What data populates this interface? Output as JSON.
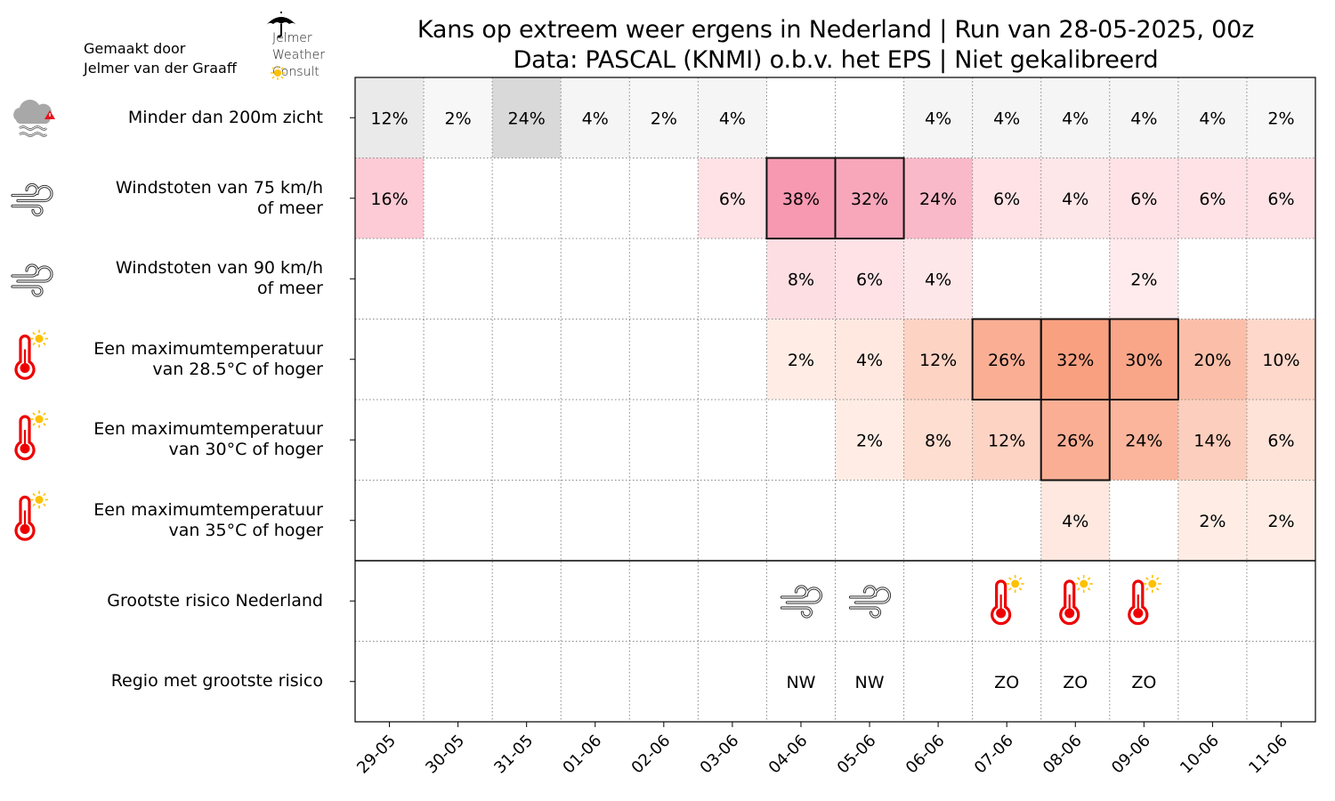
{
  "header": {
    "title_line1": "Kans op extreem weer ergens in Nederland | Run van 28-05-2025, 00z",
    "title_line2": "Data: PASCAL (KNMI) o.b.v. het EPS | Niet gekalibreerd",
    "credit_line1": "Gemaakt door",
    "credit_line2": "Jelmer van der Graaff",
    "logo_line1": "Jelmer",
    "logo_line2": "Weather",
    "logo_line3": "Consult"
  },
  "chart_data": {
    "type": "heatmap",
    "title": "Kans op extreem weer ergens in Nederland | Run van 28-05-2025, 00z",
    "subtitle": "Data: PASCAL (KNMI) o.b.v. het EPS | Niet gekalibreerd",
    "unit": "%",
    "x": [
      "29-05",
      "30-05",
      "31-05",
      "01-06",
      "02-06",
      "03-06",
      "04-06",
      "05-06",
      "06-06",
      "07-06",
      "08-06",
      "09-06",
      "10-06",
      "11-06"
    ],
    "grid": "dotted",
    "highlight_threshold_note": "cells with bold outline",
    "rows": [
      {
        "label_line1": "Minder dan 200m zicht",
        "label_line2": "",
        "icon": "fog-warning-icon",
        "colormap": "grey",
        "values": [
          12,
          2,
          24,
          4,
          2,
          4,
          null,
          null,
          4,
          4,
          4,
          4,
          4,
          2
        ],
        "highlighted": [
          false,
          false,
          false,
          false,
          false,
          false,
          false,
          false,
          false,
          false,
          false,
          false,
          false,
          false
        ]
      },
      {
        "label_line1": "Windstoten van 75 km/h",
        "label_line2": "of meer",
        "icon": "wind-icon",
        "colormap": "pink",
        "values": [
          16,
          null,
          null,
          null,
          null,
          6,
          38,
          32,
          24,
          6,
          4,
          6,
          6,
          6
        ],
        "highlighted": [
          false,
          false,
          false,
          false,
          false,
          false,
          true,
          true,
          false,
          false,
          false,
          false,
          false,
          false
        ]
      },
      {
        "label_line1": "Windstoten van 90 km/h",
        "label_line2": "of meer",
        "icon": "wind-icon",
        "colormap": "pink",
        "values": [
          null,
          null,
          null,
          null,
          null,
          null,
          8,
          6,
          4,
          null,
          null,
          2,
          null,
          null
        ],
        "highlighted": [
          false,
          false,
          false,
          false,
          false,
          false,
          false,
          false,
          false,
          false,
          false,
          false,
          false,
          false
        ]
      },
      {
        "label_line1": "Een maximumtemperatuur",
        "label_line2": "van 28.5°C of hoger",
        "icon": "thermometer-sun-icon",
        "colormap": "orange",
        "values": [
          null,
          null,
          null,
          null,
          null,
          null,
          2,
          4,
          12,
          26,
          32,
          30,
          20,
          10
        ],
        "highlighted": [
          false,
          false,
          false,
          false,
          false,
          false,
          false,
          false,
          false,
          true,
          true,
          true,
          false,
          false
        ]
      },
      {
        "label_line1": "Een maximumtemperatuur",
        "label_line2": "van 30°C of hoger",
        "icon": "thermometer-sun-icon",
        "colormap": "orange",
        "values": [
          null,
          null,
          null,
          null,
          null,
          null,
          null,
          2,
          8,
          12,
          26,
          24,
          14,
          6
        ],
        "highlighted": [
          false,
          false,
          false,
          false,
          false,
          false,
          false,
          false,
          false,
          false,
          true,
          false,
          false,
          false
        ]
      },
      {
        "label_line1": "Een maximumtemperatuur",
        "label_line2": "van 35°C of hoger",
        "icon": "thermometer-sun-icon",
        "colormap": "orange",
        "values": [
          null,
          null,
          null,
          null,
          null,
          null,
          null,
          null,
          null,
          null,
          4,
          null,
          2,
          2
        ],
        "highlighted": [
          false,
          false,
          false,
          false,
          false,
          false,
          false,
          false,
          false,
          false,
          false,
          false,
          false,
          false
        ]
      }
    ],
    "summary_rows": [
      {
        "label": "Grootste risico Nederland",
        "icons": [
          null,
          null,
          null,
          null,
          null,
          null,
          "wind-icon",
          "wind-icon",
          null,
          "thermometer-sun-icon",
          "thermometer-sun-icon",
          "thermometer-sun-icon",
          null,
          null
        ]
      },
      {
        "label": "Regio met grootste risico",
        "values": [
          "",
          "",
          "",
          "",
          "",
          "",
          "NW",
          "NW",
          "",
          "ZO",
          "ZO",
          "ZO",
          "",
          ""
        ]
      }
    ]
  },
  "colors": {
    "grey_scale": [
      "#fafafa",
      "#d9d9d9"
    ],
    "pink_scale": [
      "#fff0f0",
      "#f799b1"
    ],
    "orange_scale": [
      "#fff2ec",
      "#f9a081"
    ],
    "thermometer": "#ee0000",
    "sun": "#ffc000",
    "alert": "#e8101a"
  }
}
